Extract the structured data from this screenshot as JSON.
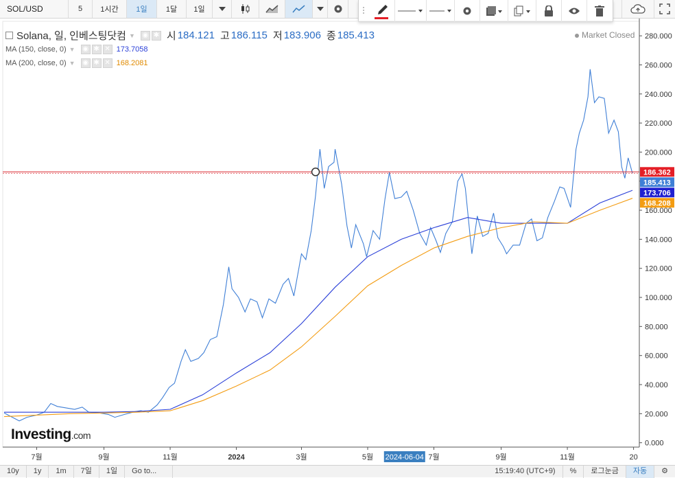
{
  "toolbar": {
    "symbol": "SOL/USD",
    "intervals": [
      {
        "label": "5"
      },
      {
        "label": "1시간"
      },
      {
        "label": "1일",
        "active": true
      },
      {
        "label": "1달"
      },
      {
        "label": "1일"
      }
    ]
  },
  "legend": {
    "title": "Solana, 일, 인베스팅닷컴",
    "ohlc": [
      {
        "label": "시",
        "value": "184.121"
      },
      {
        "label": "고",
        "value": "186.115"
      },
      {
        "label": "저",
        "value": "183.906"
      },
      {
        "label": "종",
        "value": "185.413"
      }
    ],
    "ma150": {
      "label": "MA (150, close, 0)",
      "value": "173.7058",
      "color": "#2a3fd8"
    },
    "ma200": {
      "label": "MA (200, close, 0)",
      "value": "168.2081",
      "color": "#f39c12"
    }
  },
  "market_status": "Market Closed",
  "watermark": {
    "brand": "Investing",
    "suffix": ".com"
  },
  "chart_data": {
    "type": "line",
    "series": [
      {
        "name": "Solana",
        "color": "#3f7fd6",
        "points": [
          [
            "2023-06-01",
            20.5
          ],
          [
            "2023-06-10",
            17
          ],
          [
            "2023-06-15",
            15
          ],
          [
            "2023-06-22",
            17.5
          ],
          [
            "2023-07-01",
            19
          ],
          [
            "2023-07-08",
            21
          ],
          [
            "2023-07-14",
            27
          ],
          [
            "2023-07-20",
            25
          ],
          [
            "2023-07-28",
            24
          ],
          [
            "2023-08-05",
            23
          ],
          [
            "2023-08-12",
            24.5
          ],
          [
            "2023-08-18",
            21
          ],
          [
            "2023-08-28",
            20.5
          ],
          [
            "2023-09-05",
            19.5
          ],
          [
            "2023-09-11",
            17.5
          ],
          [
            "2023-09-20",
            19.5
          ],
          [
            "2023-09-30",
            21.5
          ],
          [
            "2023-10-05",
            22
          ],
          [
            "2023-10-12",
            21
          ],
          [
            "2023-10-20",
            26
          ],
          [
            "2023-10-25",
            31
          ],
          [
            "2023-10-31",
            38
          ],
          [
            "2023-11-05",
            41
          ],
          [
            "2023-11-11",
            56
          ],
          [
            "2023-11-15",
            64
          ],
          [
            "2023-11-20",
            56
          ],
          [
            "2023-11-27",
            58
          ],
          [
            "2023-12-02",
            62
          ],
          [
            "2023-12-08",
            71
          ],
          [
            "2023-12-14",
            73
          ],
          [
            "2023-12-20",
            95
          ],
          [
            "2023-12-25",
            121
          ],
          [
            "2023-12-28",
            106
          ],
          [
            "2024-01-03",
            100
          ],
          [
            "2024-01-09",
            90
          ],
          [
            "2024-01-14",
            99
          ],
          [
            "2024-01-20",
            97
          ],
          [
            "2024-01-25",
            86
          ],
          [
            "2024-01-31",
            99
          ],
          [
            "2024-02-06",
            96
          ],
          [
            "2024-02-13",
            109
          ],
          [
            "2024-02-18",
            113
          ],
          [
            "2024-02-23",
            101
          ],
          [
            "2024-03-01",
            130
          ],
          [
            "2024-03-05",
            126
          ],
          [
            "2024-03-10",
            146
          ],
          [
            "2024-03-14",
            170
          ],
          [
            "2024-03-18",
            202
          ],
          [
            "2024-03-22",
            175
          ],
          [
            "2024-03-26",
            190
          ],
          [
            "2024-03-31",
            193
          ],
          [
            "2024-04-01",
            202
          ],
          [
            "2024-04-07",
            178
          ],
          [
            "2024-04-12",
            149
          ],
          [
            "2024-04-16",
            134
          ],
          [
            "2024-04-20",
            150
          ],
          [
            "2024-04-27",
            137
          ],
          [
            "2024-04-30",
            128
          ],
          [
            "2024-05-06",
            146
          ],
          [
            "2024-05-12",
            140
          ],
          [
            "2024-05-17",
            168
          ],
          [
            "2024-05-21",
            186
          ],
          [
            "2024-05-26",
            168
          ],
          [
            "2024-06-01",
            169
          ],
          [
            "2024-06-06",
            173
          ],
          [
            "2024-06-12",
            160
          ],
          [
            "2024-06-18",
            144
          ],
          [
            "2024-06-24",
            136
          ],
          [
            "2024-06-28",
            148
          ],
          [
            "2024-07-03",
            139
          ],
          [
            "2024-07-07",
            131
          ],
          [
            "2024-07-12",
            144
          ],
          [
            "2024-07-18",
            152
          ],
          [
            "2024-07-23",
            180
          ],
          [
            "2024-07-27",
            185
          ],
          [
            "2024-07-30",
            175
          ],
          [
            "2024-08-05",
            130
          ],
          [
            "2024-08-10",
            156
          ],
          [
            "2024-08-15",
            142
          ],
          [
            "2024-08-20",
            144
          ],
          [
            "2024-08-25",
            158
          ],
          [
            "2024-08-29",
            141
          ],
          [
            "2024-09-03",
            135
          ],
          [
            "2024-09-06",
            130
          ],
          [
            "2024-09-12",
            136
          ],
          [
            "2024-09-18",
            136
          ],
          [
            "2024-09-24",
            151
          ],
          [
            "2024-09-29",
            154
          ],
          [
            "2024-10-04",
            139
          ],
          [
            "2024-10-09",
            141
          ],
          [
            "2024-10-14",
            155
          ],
          [
            "2024-10-20",
            166
          ],
          [
            "2024-10-25",
            176
          ],
          [
            "2024-10-29",
            175
          ],
          [
            "2024-11-04",
            162
          ],
          [
            "2024-11-09",
            202
          ],
          [
            "2024-11-12",
            213
          ],
          [
            "2024-11-16",
            222
          ],
          [
            "2024-11-20",
            238
          ],
          [
            "2024-11-22",
            257
          ],
          [
            "2024-11-26",
            234
          ],
          [
            "2024-11-30",
            238
          ],
          [
            "2024-12-05",
            237
          ],
          [
            "2024-12-09",
            213
          ],
          [
            "2024-12-14",
            222
          ],
          [
            "2024-12-18",
            214
          ],
          [
            "2024-12-21",
            190
          ],
          [
            "2024-12-24",
            182
          ],
          [
            "2024-12-27",
            196
          ],
          [
            "2024-12-31",
            185.4
          ]
        ]
      },
      {
        "name": "MA (150, close, 0)",
        "color": "#2a3fd8",
        "points": [
          [
            "2023-06-01",
            21
          ],
          [
            "2023-07-01",
            21
          ],
          [
            "2023-08-01",
            21
          ],
          [
            "2023-09-01",
            21
          ],
          [
            "2023-10-01",
            21.5
          ],
          [
            "2023-11-01",
            23
          ],
          [
            "2023-12-01",
            33
          ],
          [
            "2024-01-01",
            48
          ],
          [
            "2024-02-01",
            62
          ],
          [
            "2024-03-01",
            82
          ],
          [
            "2024-04-01",
            107
          ],
          [
            "2024-05-01",
            128
          ],
          [
            "2024-06-01",
            140
          ],
          [
            "2024-07-01",
            148
          ],
          [
            "2024-08-01",
            155
          ],
          [
            "2024-09-01",
            151
          ],
          [
            "2024-10-01",
            151
          ],
          [
            "2024-11-01",
            151
          ],
          [
            "2024-12-01",
            165
          ],
          [
            "2024-12-31",
            173.7
          ]
        ]
      },
      {
        "name": "MA (200, close, 0)",
        "color": "#f39c12",
        "points": [
          [
            "2023-06-01",
            18
          ],
          [
            "2023-07-01",
            19
          ],
          [
            "2023-08-01",
            20
          ],
          [
            "2023-09-01",
            20.5
          ],
          [
            "2023-10-01",
            21
          ],
          [
            "2023-11-01",
            22
          ],
          [
            "2023-12-01",
            29
          ],
          [
            "2024-01-01",
            39
          ],
          [
            "2024-02-01",
            50
          ],
          [
            "2024-03-01",
            66
          ],
          [
            "2024-04-01",
            87
          ],
          [
            "2024-05-01",
            108
          ],
          [
            "2024-06-01",
            122
          ],
          [
            "2024-07-01",
            134
          ],
          [
            "2024-08-01",
            142
          ],
          [
            "2024-09-01",
            148
          ],
          [
            "2024-10-01",
            152
          ],
          [
            "2024-11-01",
            151
          ],
          [
            "2024-12-01",
            160
          ],
          [
            "2024-12-31",
            168.2
          ]
        ]
      }
    ],
    "horizontal_line": {
      "value": 186.362,
      "label": "186.362",
      "color": "#d9232a"
    },
    "price_labels": [
      {
        "label": "186.362",
        "value": 186.362,
        "color": "#e41e26"
      },
      {
        "label": "185.413",
        "value": 185.413,
        "color": "#3f7fd6"
      },
      {
        "label": "173.706",
        "value": 173.706,
        "color": "#2020d0"
      },
      {
        "label": "168.208",
        "value": 168.208,
        "color": "#f39c12"
      }
    ],
    "yaxis": {
      "ylim": [
        -3,
        290
      ],
      "ticks": [
        {
          "value": 280,
          "label": "280.000"
        },
        {
          "value": 260,
          "label": "260.000"
        },
        {
          "value": 240,
          "label": "240.000"
        },
        {
          "value": 220,
          "label": "220.000"
        },
        {
          "value": 200,
          "label": "200.000"
        },
        {
          "value": 180,
          "label": "180.000"
        },
        {
          "value": 160,
          "label": "160.000"
        },
        {
          "value": 140,
          "label": "140.000"
        },
        {
          "value": 120,
          "label": "120.000"
        },
        {
          "value": 100,
          "label": "100.000"
        },
        {
          "value": 80,
          "label": "80.000"
        },
        {
          "value": 60,
          "label": "60.000"
        },
        {
          "value": 40,
          "label": "40.000"
        },
        {
          "value": 20,
          "label": "20.000"
        },
        {
          "value": 0,
          "label": "0.000"
        }
      ]
    },
    "xaxis": {
      "xlim": [
        "2023-06-01",
        "2024-12-31"
      ],
      "ticks": [
        {
          "date": "2023-07-01",
          "label": "7월"
        },
        {
          "date": "2023-09-01",
          "label": "9월"
        },
        {
          "date": "2023-11-01",
          "label": "11월"
        },
        {
          "date": "2024-01-01",
          "label": "2024"
        },
        {
          "date": "2024-03-01",
          "label": "3월"
        },
        {
          "date": "2024-05-01",
          "label": "5월"
        },
        {
          "date": "2024-07-01",
          "label": "7월"
        },
        {
          "date": "2024-09-01",
          "label": "9월"
        },
        {
          "date": "2024-11-01",
          "label": "11월"
        },
        {
          "date": "2025-01-01",
          "label": "20"
        }
      ],
      "crosshair_label": {
        "date": "2024-06-04",
        "label": "2024-06-04"
      }
    },
    "marker": {
      "date": "2024-03-14",
      "value": 186.362
    }
  },
  "bottombar": {
    "ranges": [
      "10y",
      "1y",
      "1m",
      "7일",
      "1일"
    ],
    "goto": "Go to...",
    "time": "15:19:40 (UTC+9)",
    "percent": "%",
    "log": "로그눈금",
    "auto": "자동"
  }
}
